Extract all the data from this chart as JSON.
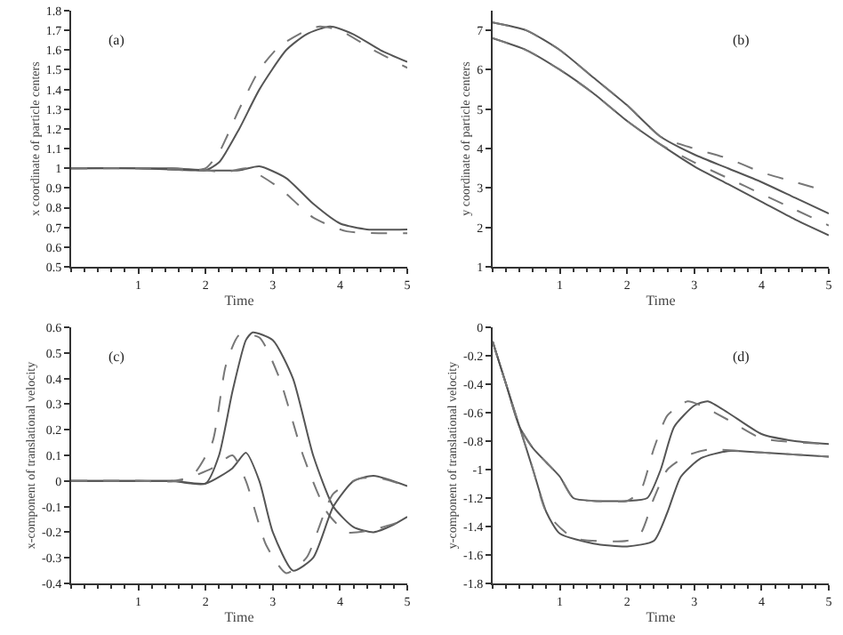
{
  "chart_data": [
    {
      "type": "line",
      "title": "(a)",
      "xlabel": "Time",
      "ylabel": "x coordinate of particle centers",
      "xlim": [
        0,
        5
      ],
      "xticks": [
        1,
        2,
        3,
        4,
        5
      ],
      "ylim": [
        0.5,
        1.8
      ],
      "yticks": [
        0.5,
        0.6,
        0.7,
        0.8,
        0.9,
        1,
        1.1,
        1.2,
        1.3,
        1.4,
        1.5,
        1.6,
        1.7,
        1.8
      ],
      "series": [
        {
          "color": "#555555",
          "line_style": "solid",
          "x": [
            0,
            1,
            1.8,
            2,
            2.2,
            2.5,
            2.8,
            3.2,
            3.5,
            3.85,
            4.2,
            4.6,
            5
          ],
          "values": [
            1,
            1,
            0.99,
            0.99,
            1.03,
            1.2,
            1.4,
            1.6,
            1.68,
            1.72,
            1.68,
            1.6,
            1.54
          ]
        },
        {
          "color": "#777777",
          "line_style": "dashed",
          "x": [
            0,
            1,
            1.8,
            2,
            2.2,
            2.5,
            2.8,
            3.1,
            3.5,
            3.7,
            4,
            4.5,
            5
          ],
          "values": [
            1,
            1,
            0.99,
            1,
            1.08,
            1.3,
            1.5,
            1.62,
            1.7,
            1.72,
            1.7,
            1.6,
            1.51
          ]
        },
        {
          "color": "#555555",
          "line_style": "solid",
          "x": [
            0,
            1,
            1.5,
            2,
            2.5,
            2.8,
            3.2,
            3.6,
            4,
            4.4,
            5
          ],
          "values": [
            1,
            1,
            1,
            0.99,
            0.99,
            1.01,
            0.95,
            0.82,
            0.72,
            0.69,
            0.69
          ]
        },
        {
          "color": "#777777",
          "line_style": "dashed",
          "x": [
            0,
            1,
            1.5,
            2,
            2.3,
            2.6,
            3.1,
            3.6,
            4.1,
            5
          ],
          "values": [
            1,
            1,
            1,
            0.99,
            0.98,
            1,
            0.9,
            0.75,
            0.68,
            0.67
          ]
        }
      ]
    },
    {
      "type": "line",
      "title": "(b)",
      "xlabel": "Time",
      "ylabel": "y coordinate of particle centers",
      "xlim": [
        0,
        5
      ],
      "xticks": [
        1,
        2,
        3,
        4,
        5
      ],
      "ylim": [
        1,
        7.5
      ],
      "yticks": [
        1,
        2,
        3,
        4,
        5,
        6,
        7
      ],
      "series": [
        {
          "color": "#555555",
          "line_style": "solid",
          "x": [
            0,
            0.5,
            1,
            1.5,
            2,
            2.5,
            3,
            3.5,
            4,
            4.5,
            5
          ],
          "values": [
            7.2,
            7,
            6.5,
            5.8,
            5.1,
            4.3,
            3.85,
            3.5,
            3.15,
            2.75,
            2.35
          ]
        },
        {
          "color": "#777777",
          "line_style": "dashed",
          "x": [
            0,
            0.5,
            1,
            1.5,
            2,
            2.5,
            3,
            3.5,
            4,
            4.5,
            5
          ],
          "values": [
            7.2,
            7,
            6.5,
            5.8,
            5.1,
            4.3,
            4,
            3.75,
            3.4,
            3.15,
            2.9
          ]
        },
        {
          "color": "#555555",
          "line_style": "solid",
          "x": [
            0,
            0.5,
            1,
            1.5,
            2,
            2.5,
            3,
            3.5,
            4,
            4.5,
            5
          ],
          "values": [
            6.8,
            6.5,
            6,
            5.4,
            4.7,
            4.1,
            3.55,
            3.1,
            2.65,
            2.2,
            1.8
          ]
        },
        {
          "color": "#777777",
          "line_style": "dashed",
          "x": [
            0,
            0.5,
            1,
            1.5,
            2,
            2.5,
            3,
            3.5,
            4,
            4.5,
            5
          ],
          "values": [
            6.8,
            6.5,
            6,
            5.4,
            4.7,
            4.1,
            3.65,
            3.25,
            2.85,
            2.45,
            2.05
          ]
        }
      ]
    },
    {
      "type": "line",
      "title": "(c)",
      "xlabel": "Time",
      "ylabel": "x-component of translational velocity",
      "xlim": [
        0,
        5
      ],
      "xticks": [
        1,
        2,
        3,
        4,
        5
      ],
      "ylim": [
        -0.4,
        0.6
      ],
      "yticks": [
        -0.4,
        -0.3,
        -0.2,
        -0.1,
        0,
        0.1,
        0.2,
        0.3,
        0.4,
        0.5,
        0.6
      ],
      "series": [
        {
          "color": "#555555",
          "line_style": "solid",
          "x": [
            0,
            1,
            1.5,
            2,
            2.2,
            2.4,
            2.6,
            2.7,
            3,
            3.3,
            3.6,
            3.9,
            4.2,
            4.5,
            4.8,
            5
          ],
          "values": [
            0,
            0,
            0,
            -0.01,
            0.1,
            0.35,
            0.55,
            0.58,
            0.55,
            0.4,
            0.1,
            -0.1,
            -0.18,
            -0.2,
            -0.17,
            -0.14
          ]
        },
        {
          "color": "#777777",
          "line_style": "dashed",
          "x": [
            0,
            1,
            1.5,
            1.8,
            2.1,
            2.3,
            2.5,
            2.8,
            3.1,
            3.45,
            3.8,
            4.1,
            4.5,
            5
          ],
          "values": [
            0,
            0,
            0,
            0.02,
            0.15,
            0.45,
            0.57,
            0.56,
            0.4,
            0.1,
            -0.12,
            -0.2,
            -0.19,
            -0.15
          ]
        },
        {
          "color": "#555555",
          "line_style": "solid",
          "x": [
            0,
            1,
            1.5,
            2,
            2.4,
            2.6,
            2.8,
            3,
            3.3,
            3.6,
            3.9,
            4.2,
            4.5,
            5
          ],
          "values": [
            0,
            0,
            0,
            -0.01,
            0.05,
            0.11,
            0,
            -0.2,
            -0.35,
            -0.3,
            -0.1,
            0,
            0.02,
            -0.02
          ]
        },
        {
          "color": "#777777",
          "line_style": "dashed",
          "x": [
            0,
            1,
            1.6,
            2.1,
            2.4,
            2.6,
            2.9,
            3.2,
            3.5,
            3.9,
            4.3,
            4.6,
            5
          ],
          "values": [
            0,
            0,
            0,
            0.05,
            0.1,
            0,
            -0.25,
            -0.36,
            -0.3,
            -0.05,
            0.01,
            0.01,
            -0.02
          ]
        }
      ]
    },
    {
      "type": "line",
      "title": "(d)",
      "xlabel": "Time",
      "ylabel": "y-component of translational velocity",
      "xlim": [
        0,
        5
      ],
      "xticks": [
        1,
        2,
        3,
        4,
        5
      ],
      "ylim": [
        -1.8,
        0
      ],
      "yticks": [
        -1.8,
        -1.6,
        -1.4,
        -1.2,
        -1,
        -0.8,
        -0.6,
        -0.4,
        -0.2,
        0
      ],
      "series": [
        {
          "color": "#555555",
          "line_style": "solid",
          "x": [
            0,
            0.2,
            0.4,
            0.6,
            0.8,
            1,
            1.2,
            1.5,
            2,
            2.3,
            2.5,
            2.7,
            3,
            3.2,
            3.5,
            4,
            4.5,
            5
          ],
          "values": [
            -0.1,
            -0.4,
            -0.7,
            -0.85,
            -0.95,
            -1.05,
            -1.2,
            -1.22,
            -1.22,
            -1.2,
            -1,
            -0.7,
            -0.55,
            -0.52,
            -0.6,
            -0.75,
            -0.8,
            -0.82
          ]
        },
        {
          "color": "#777777",
          "line_style": "dashed",
          "x": [
            0,
            0.2,
            0.4,
            0.6,
            0.8,
            1,
            1.2,
            1.5,
            2,
            2.2,
            2.4,
            2.6,
            2.9,
            3.1,
            3.5,
            4,
            5
          ],
          "values": [
            -0.1,
            -0.4,
            -0.7,
            -0.85,
            -0.95,
            -1.05,
            -1.2,
            -1.22,
            -1.22,
            -1.15,
            -0.85,
            -0.62,
            -0.52,
            -0.55,
            -0.65,
            -0.78,
            -0.82
          ]
        },
        {
          "color": "#555555",
          "line_style": "solid",
          "x": [
            0,
            0.2,
            0.4,
            0.6,
            0.8,
            1,
            1.5,
            2,
            2.4,
            2.6,
            2.8,
            3.1,
            3.5,
            4,
            5
          ],
          "values": [
            -0.1,
            -0.4,
            -0.7,
            -1,
            -1.3,
            -1.45,
            -1.52,
            -1.54,
            -1.5,
            -1.3,
            -1.05,
            -0.92,
            -0.87,
            -0.88,
            -0.91
          ]
        },
        {
          "color": "#777777",
          "line_style": "dashed",
          "x": [
            0,
            0.2,
            0.4,
            0.6,
            0.8,
            1.2,
            2,
            2.2,
            2.4,
            2.6,
            2.9,
            3.2,
            4,
            5
          ],
          "values": [
            -0.1,
            -0.4,
            -0.7,
            -1,
            -1.3,
            -1.48,
            -1.5,
            -1.45,
            -1.2,
            -1,
            -0.9,
            -0.86,
            -0.88,
            -0.91
          ]
        }
      ]
    }
  ]
}
